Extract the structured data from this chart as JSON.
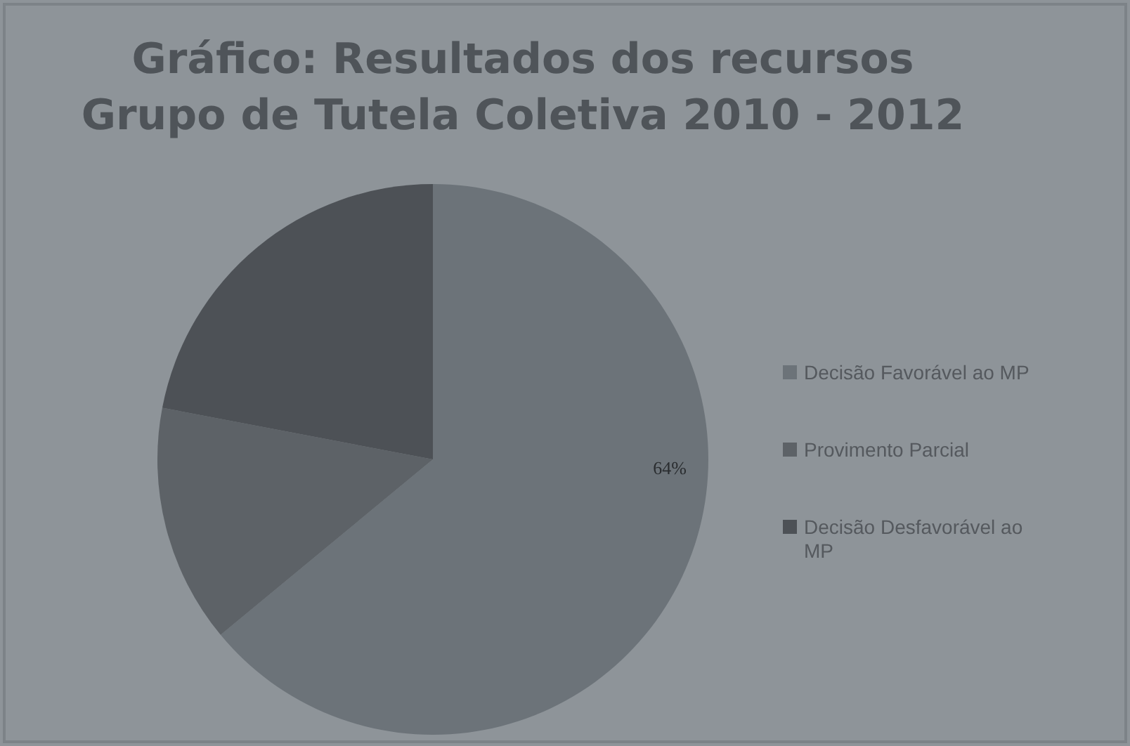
{
  "chart_data": {
    "type": "pie",
    "title": "Gráfico: Resultados dos recursos\nGrupo de Tutela Coletiva  2010 - 2012",
    "categories": [
      "Decisão Favorável ao MP",
      "Provimento Parcial",
      "Decisão Desfavorável ao MP"
    ],
    "values": [
      64,
      14,
      22
    ],
    "colors": [
      "#6c7379",
      "#5d6267",
      "#4d5156"
    ],
    "value_labels": [
      "64%",
      null,
      null
    ],
    "legend": "right"
  }
}
